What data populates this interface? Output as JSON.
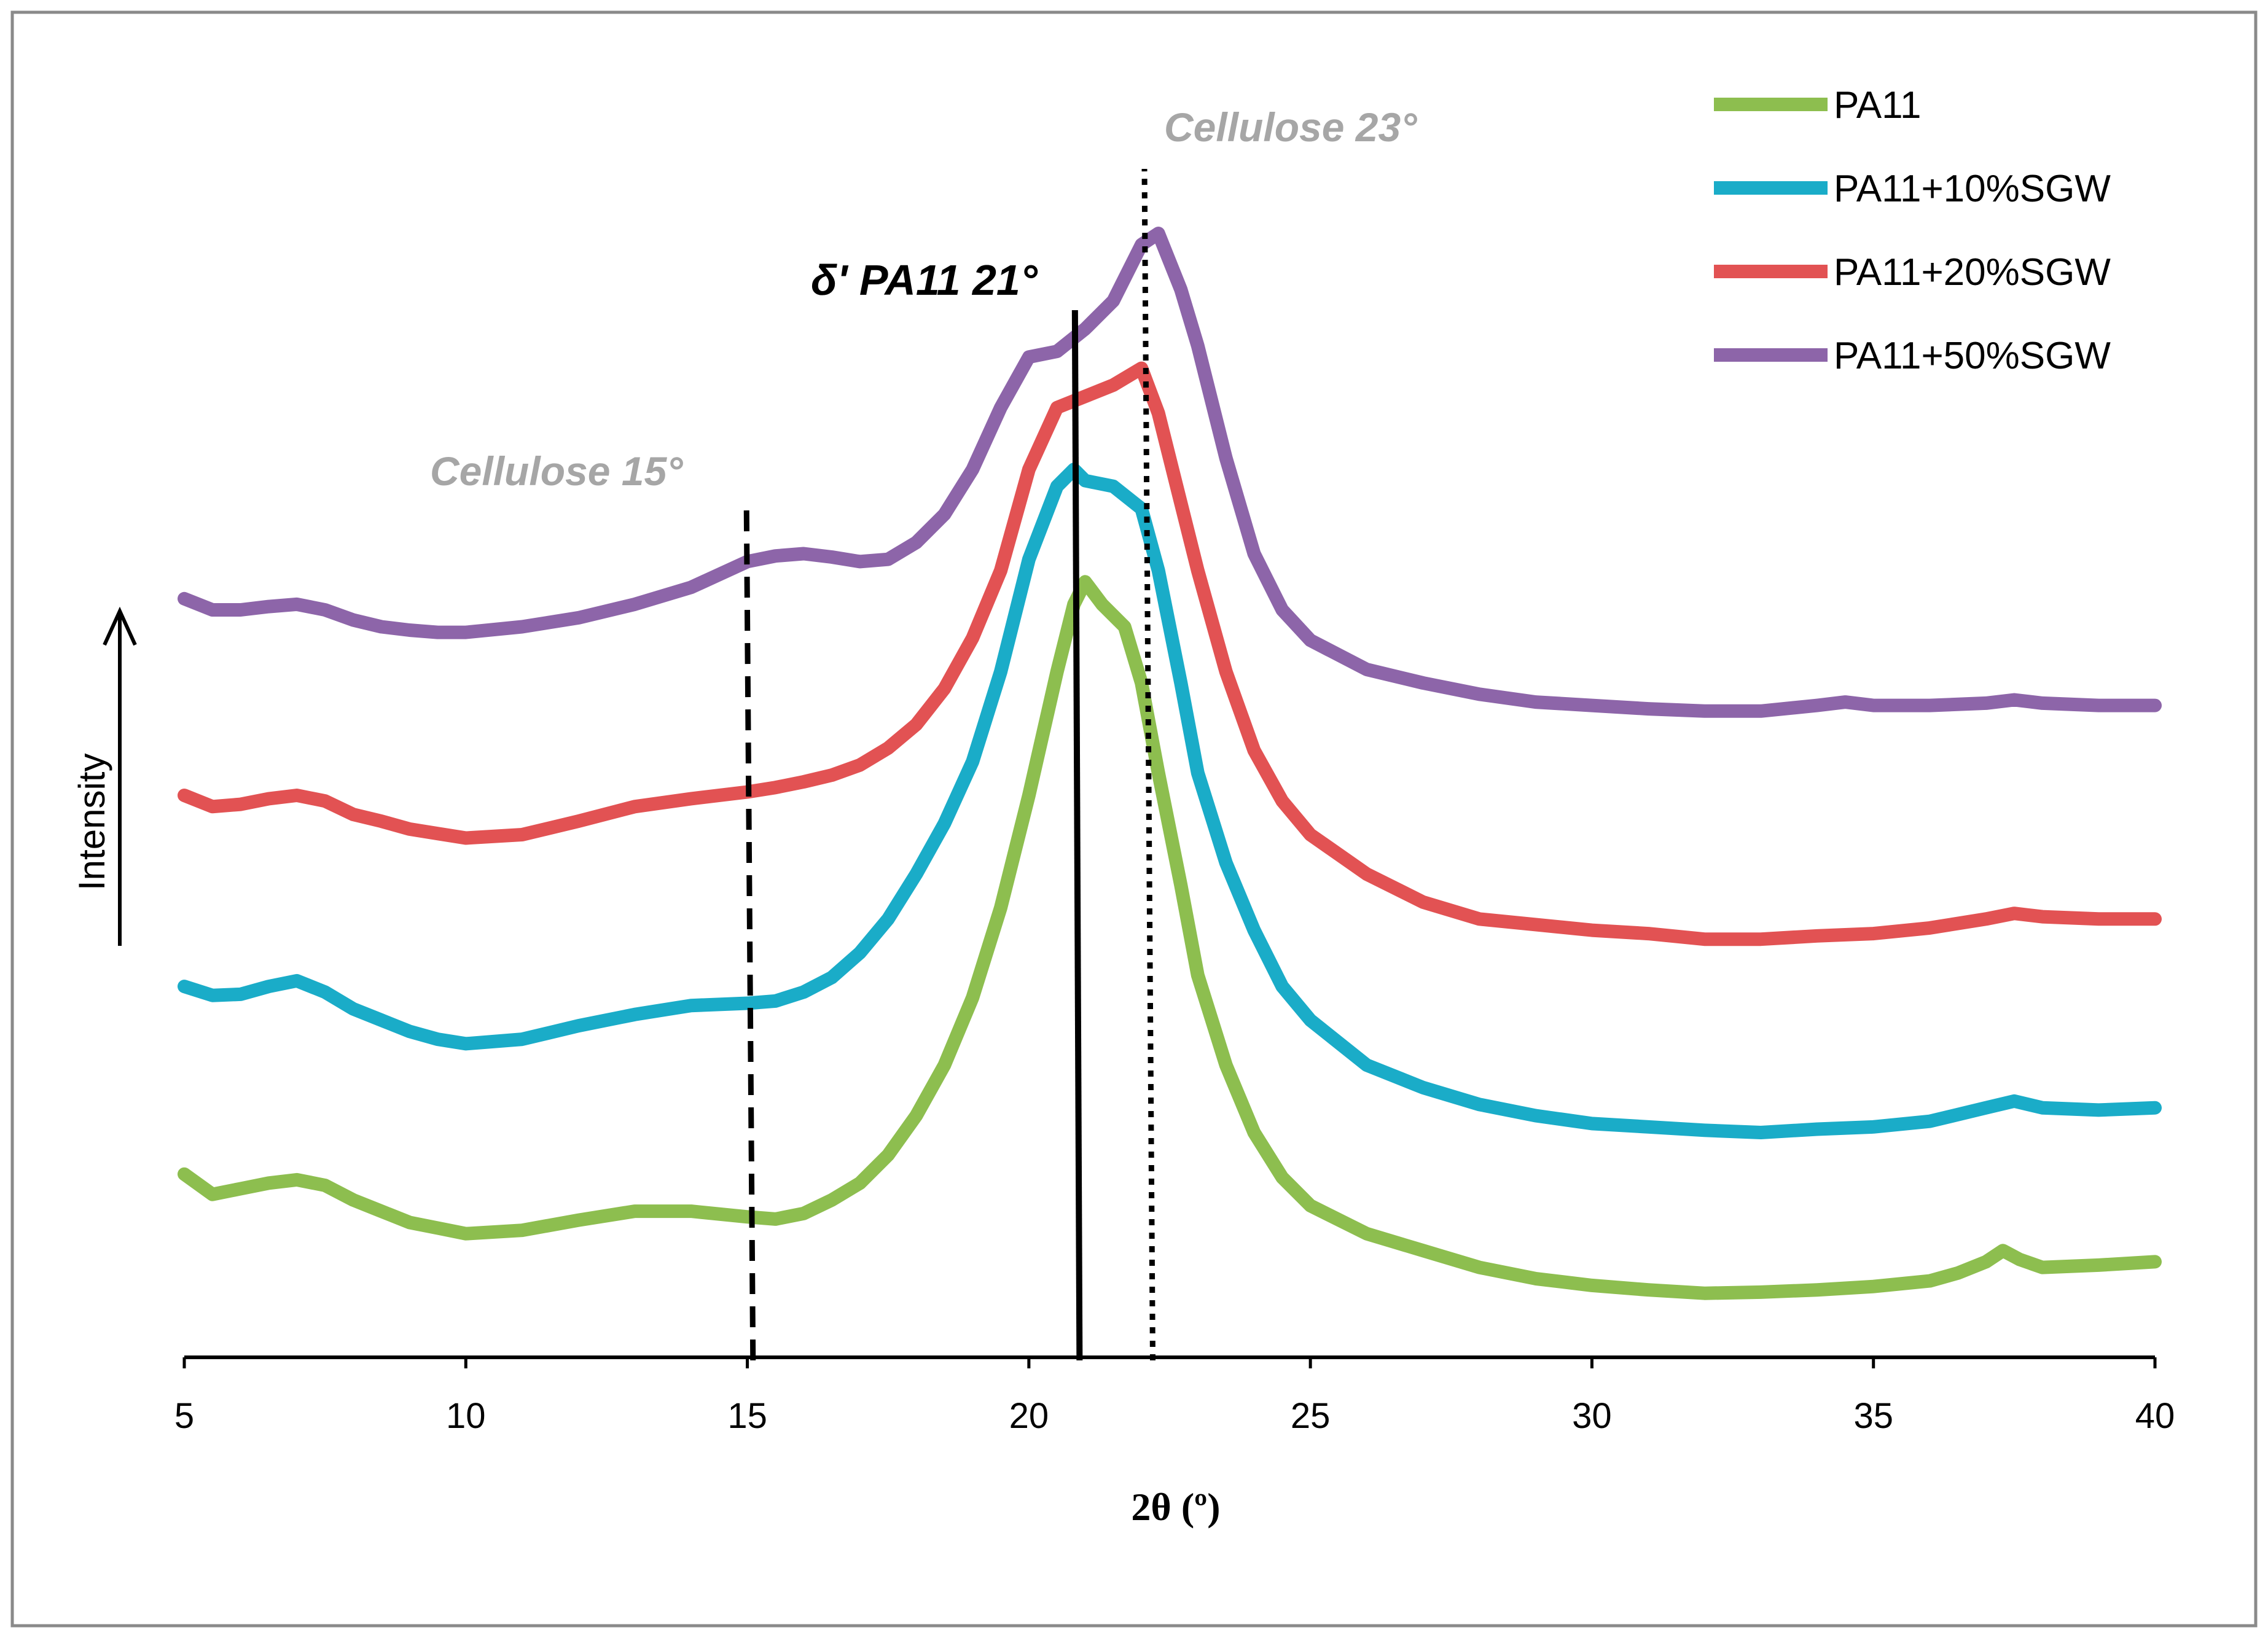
{
  "chart_data": {
    "type": "line",
    "title": "",
    "xlabel": "2θ (º)",
    "ylabel": "Intensity",
    "xlim": [
      5,
      40
    ],
    "ylim": [
      0,
      1
    ],
    "x_ticks": [
      5,
      10,
      15,
      20,
      25,
      30,
      35,
      40
    ],
    "y_ticks": [],
    "grid": false,
    "legend_position": "top-right",
    "series": [
      {
        "name": "PA11",
        "color": "#8DBE4F",
        "points": [
          [
            5,
            0.163
          ],
          [
            5.5,
            0.145
          ],
          [
            6,
            0.15
          ],
          [
            6.5,
            0.155
          ],
          [
            7,
            0.158
          ],
          [
            7.5,
            0.153
          ],
          [
            8,
            0.14
          ],
          [
            8.5,
            0.13
          ],
          [
            9,
            0.12
          ],
          [
            9.5,
            0.115
          ],
          [
            10,
            0.11
          ],
          [
            11,
            0.113
          ],
          [
            12,
            0.122
          ],
          [
            13,
            0.13
          ],
          [
            14,
            0.13
          ],
          [
            15,
            0.125
          ],
          [
            15.5,
            0.123
          ],
          [
            16,
            0.128
          ],
          [
            16.5,
            0.14
          ],
          [
            17,
            0.155
          ],
          [
            17.5,
            0.18
          ],
          [
            18,
            0.215
          ],
          [
            18.5,
            0.26
          ],
          [
            19,
            0.32
          ],
          [
            19.5,
            0.4
          ],
          [
            20,
            0.5
          ],
          [
            20.5,
            0.61
          ],
          [
            20.8,
            0.67
          ],
          [
            21,
            0.69
          ],
          [
            21.3,
            0.67
          ],
          [
            21.7,
            0.65
          ],
          [
            22,
            0.6
          ],
          [
            22.3,
            0.52
          ],
          [
            22.7,
            0.42
          ],
          [
            23,
            0.34
          ],
          [
            23.5,
            0.26
          ],
          [
            24,
            0.2
          ],
          [
            24.5,
            0.16
          ],
          [
            25,
            0.135
          ],
          [
            26,
            0.11
          ],
          [
            27,
            0.095
          ],
          [
            28,
            0.08
          ],
          [
            29,
            0.07
          ],
          [
            30,
            0.064
          ],
          [
            31,
            0.06
          ],
          [
            32,
            0.057
          ],
          [
            33,
            0.058
          ],
          [
            34,
            0.06
          ],
          [
            35,
            0.063
          ],
          [
            36,
            0.068
          ],
          [
            36.5,
            0.075
          ],
          [
            37,
            0.085
          ],
          [
            37.3,
            0.095
          ],
          [
            37.6,
            0.087
          ],
          [
            38,
            0.08
          ],
          [
            39,
            0.082
          ],
          [
            40,
            0.085
          ]
        ]
      },
      {
        "name": "PA11+10%SGW",
        "color": "#1AACC8",
        "points": [
          [
            5,
            0.33
          ],
          [
            5.5,
            0.322
          ],
          [
            6,
            0.323
          ],
          [
            6.5,
            0.33
          ],
          [
            7,
            0.335
          ],
          [
            7.5,
            0.325
          ],
          [
            8,
            0.31
          ],
          [
            8.5,
            0.3
          ],
          [
            9,
            0.29
          ],
          [
            9.5,
            0.283
          ],
          [
            10,
            0.279
          ],
          [
            11,
            0.283
          ],
          [
            12,
            0.295
          ],
          [
            13,
            0.305
          ],
          [
            14,
            0.313
          ],
          [
            15,
            0.315
          ],
          [
            15.5,
            0.317
          ],
          [
            16,
            0.325
          ],
          [
            16.5,
            0.338
          ],
          [
            17,
            0.36
          ],
          [
            17.5,
            0.39
          ],
          [
            18,
            0.43
          ],
          [
            18.5,
            0.475
          ],
          [
            19,
            0.53
          ],
          [
            19.5,
            0.61
          ],
          [
            20,
            0.71
          ],
          [
            20.5,
            0.775
          ],
          [
            20.8,
            0.79
          ],
          [
            21,
            0.78
          ],
          [
            21.5,
            0.775
          ],
          [
            22,
            0.755
          ],
          [
            22.3,
            0.7
          ],
          [
            22.7,
            0.6
          ],
          [
            23,
            0.52
          ],
          [
            23.5,
            0.44
          ],
          [
            24,
            0.38
          ],
          [
            24.5,
            0.33
          ],
          [
            25,
            0.3
          ],
          [
            26,
            0.26
          ],
          [
            27,
            0.24
          ],
          [
            28,
            0.225
          ],
          [
            29,
            0.215
          ],
          [
            30,
            0.208
          ],
          [
            31,
            0.205
          ],
          [
            32,
            0.202
          ],
          [
            33,
            0.2
          ],
          [
            34,
            0.203
          ],
          [
            35,
            0.205
          ],
          [
            36,
            0.21
          ],
          [
            37,
            0.222
          ],
          [
            37.5,
            0.228
          ],
          [
            38,
            0.222
          ],
          [
            39,
            0.22
          ],
          [
            40,
            0.222
          ]
        ]
      },
      {
        "name": "PA11+20%SGW",
        "color": "#E25253",
        "points": [
          [
            5,
            0.5
          ],
          [
            5.5,
            0.49
          ],
          [
            6,
            0.492
          ],
          [
            6.5,
            0.497
          ],
          [
            7,
            0.5
          ],
          [
            7.5,
            0.495
          ],
          [
            8,
            0.483
          ],
          [
            8.5,
            0.477
          ],
          [
            9,
            0.47
          ],
          [
            9.5,
            0.466
          ],
          [
            10,
            0.462
          ],
          [
            11,
            0.465
          ],
          [
            12,
            0.477
          ],
          [
            13,
            0.49
          ],
          [
            14,
            0.497
          ],
          [
            15,
            0.503
          ],
          [
            15.5,
            0.507
          ],
          [
            16,
            0.512
          ],
          [
            16.5,
            0.518
          ],
          [
            17,
            0.527
          ],
          [
            17.5,
            0.542
          ],
          [
            18,
            0.563
          ],
          [
            18.5,
            0.595
          ],
          [
            19,
            0.64
          ],
          [
            19.5,
            0.7
          ],
          [
            20,
            0.79
          ],
          [
            20.5,
            0.845
          ],
          [
            21,
            0.855
          ],
          [
            21.5,
            0.865
          ],
          [
            22,
            0.88
          ],
          [
            22.3,
            0.84
          ],
          [
            22.7,
            0.76
          ],
          [
            23,
            0.7
          ],
          [
            23.5,
            0.61
          ],
          [
            24,
            0.54
          ],
          [
            24.5,
            0.495
          ],
          [
            25,
            0.465
          ],
          [
            26,
            0.43
          ],
          [
            27,
            0.405
          ],
          [
            28,
            0.39
          ],
          [
            29,
            0.385
          ],
          [
            30,
            0.38
          ],
          [
            31,
            0.377
          ],
          [
            32,
            0.372
          ],
          [
            33,
            0.372
          ],
          [
            34,
            0.375
          ],
          [
            35,
            0.377
          ],
          [
            36,
            0.382
          ],
          [
            37,
            0.39
          ],
          [
            37.5,
            0.395
          ],
          [
            38,
            0.392
          ],
          [
            39,
            0.39
          ],
          [
            40,
            0.39
          ]
        ]
      },
      {
        "name": "PA11+50%SGW",
        "color": "#8D65A9",
        "points": [
          [
            5,
            0.675
          ],
          [
            5.5,
            0.665
          ],
          [
            6,
            0.665
          ],
          [
            6.5,
            0.668
          ],
          [
            7,
            0.67
          ],
          [
            7.5,
            0.665
          ],
          [
            8,
            0.656
          ],
          [
            8.5,
            0.65
          ],
          [
            9,
            0.647
          ],
          [
            9.5,
            0.645
          ],
          [
            10,
            0.645
          ],
          [
            11,
            0.65
          ],
          [
            12,
            0.658
          ],
          [
            13,
            0.67
          ],
          [
            14,
            0.685
          ],
          [
            15,
            0.708
          ],
          [
            15.5,
            0.713
          ],
          [
            16,
            0.715
          ],
          [
            16.5,
            0.712
          ],
          [
            17,
            0.708
          ],
          [
            17.5,
            0.71
          ],
          [
            18,
            0.725
          ],
          [
            18.5,
            0.75
          ],
          [
            19,
            0.79
          ],
          [
            19.5,
            0.845
          ],
          [
            20,
            0.89
          ],
          [
            20.5,
            0.895
          ],
          [
            21,
            0.915
          ],
          [
            21.5,
            0.94
          ],
          [
            22,
            0.99
          ],
          [
            22.3,
            1.0
          ],
          [
            22.7,
            0.95
          ],
          [
            23,
            0.9
          ],
          [
            23.5,
            0.8
          ],
          [
            24,
            0.715
          ],
          [
            24.5,
            0.665
          ],
          [
            25,
            0.638
          ],
          [
            26,
            0.612
          ],
          [
            27,
            0.6
          ],
          [
            28,
            0.59
          ],
          [
            29,
            0.583
          ],
          [
            30,
            0.58
          ],
          [
            31,
            0.577
          ],
          [
            32,
            0.575
          ],
          [
            33,
            0.575
          ],
          [
            34,
            0.58
          ],
          [
            34.5,
            0.583
          ],
          [
            35,
            0.58
          ],
          [
            36,
            0.58
          ],
          [
            37,
            0.582
          ],
          [
            37.5,
            0.585
          ],
          [
            38,
            0.582
          ],
          [
            39,
            0.58
          ],
          [
            40,
            0.58
          ]
        ]
      }
    ],
    "reference_lines": [
      {
        "x": 15.1,
        "style": "dashed",
        "label": "Cellulose 15°",
        "label_color": "#A6A6A6"
      },
      {
        "x": 20.9,
        "style": "solid",
        "label": "δ' PA11 21°",
        "label_color": "#000000"
      },
      {
        "x": 22.2,
        "style": "dotted",
        "label": "Cellulose 23°",
        "label_color": "#A6A6A6"
      }
    ]
  }
}
